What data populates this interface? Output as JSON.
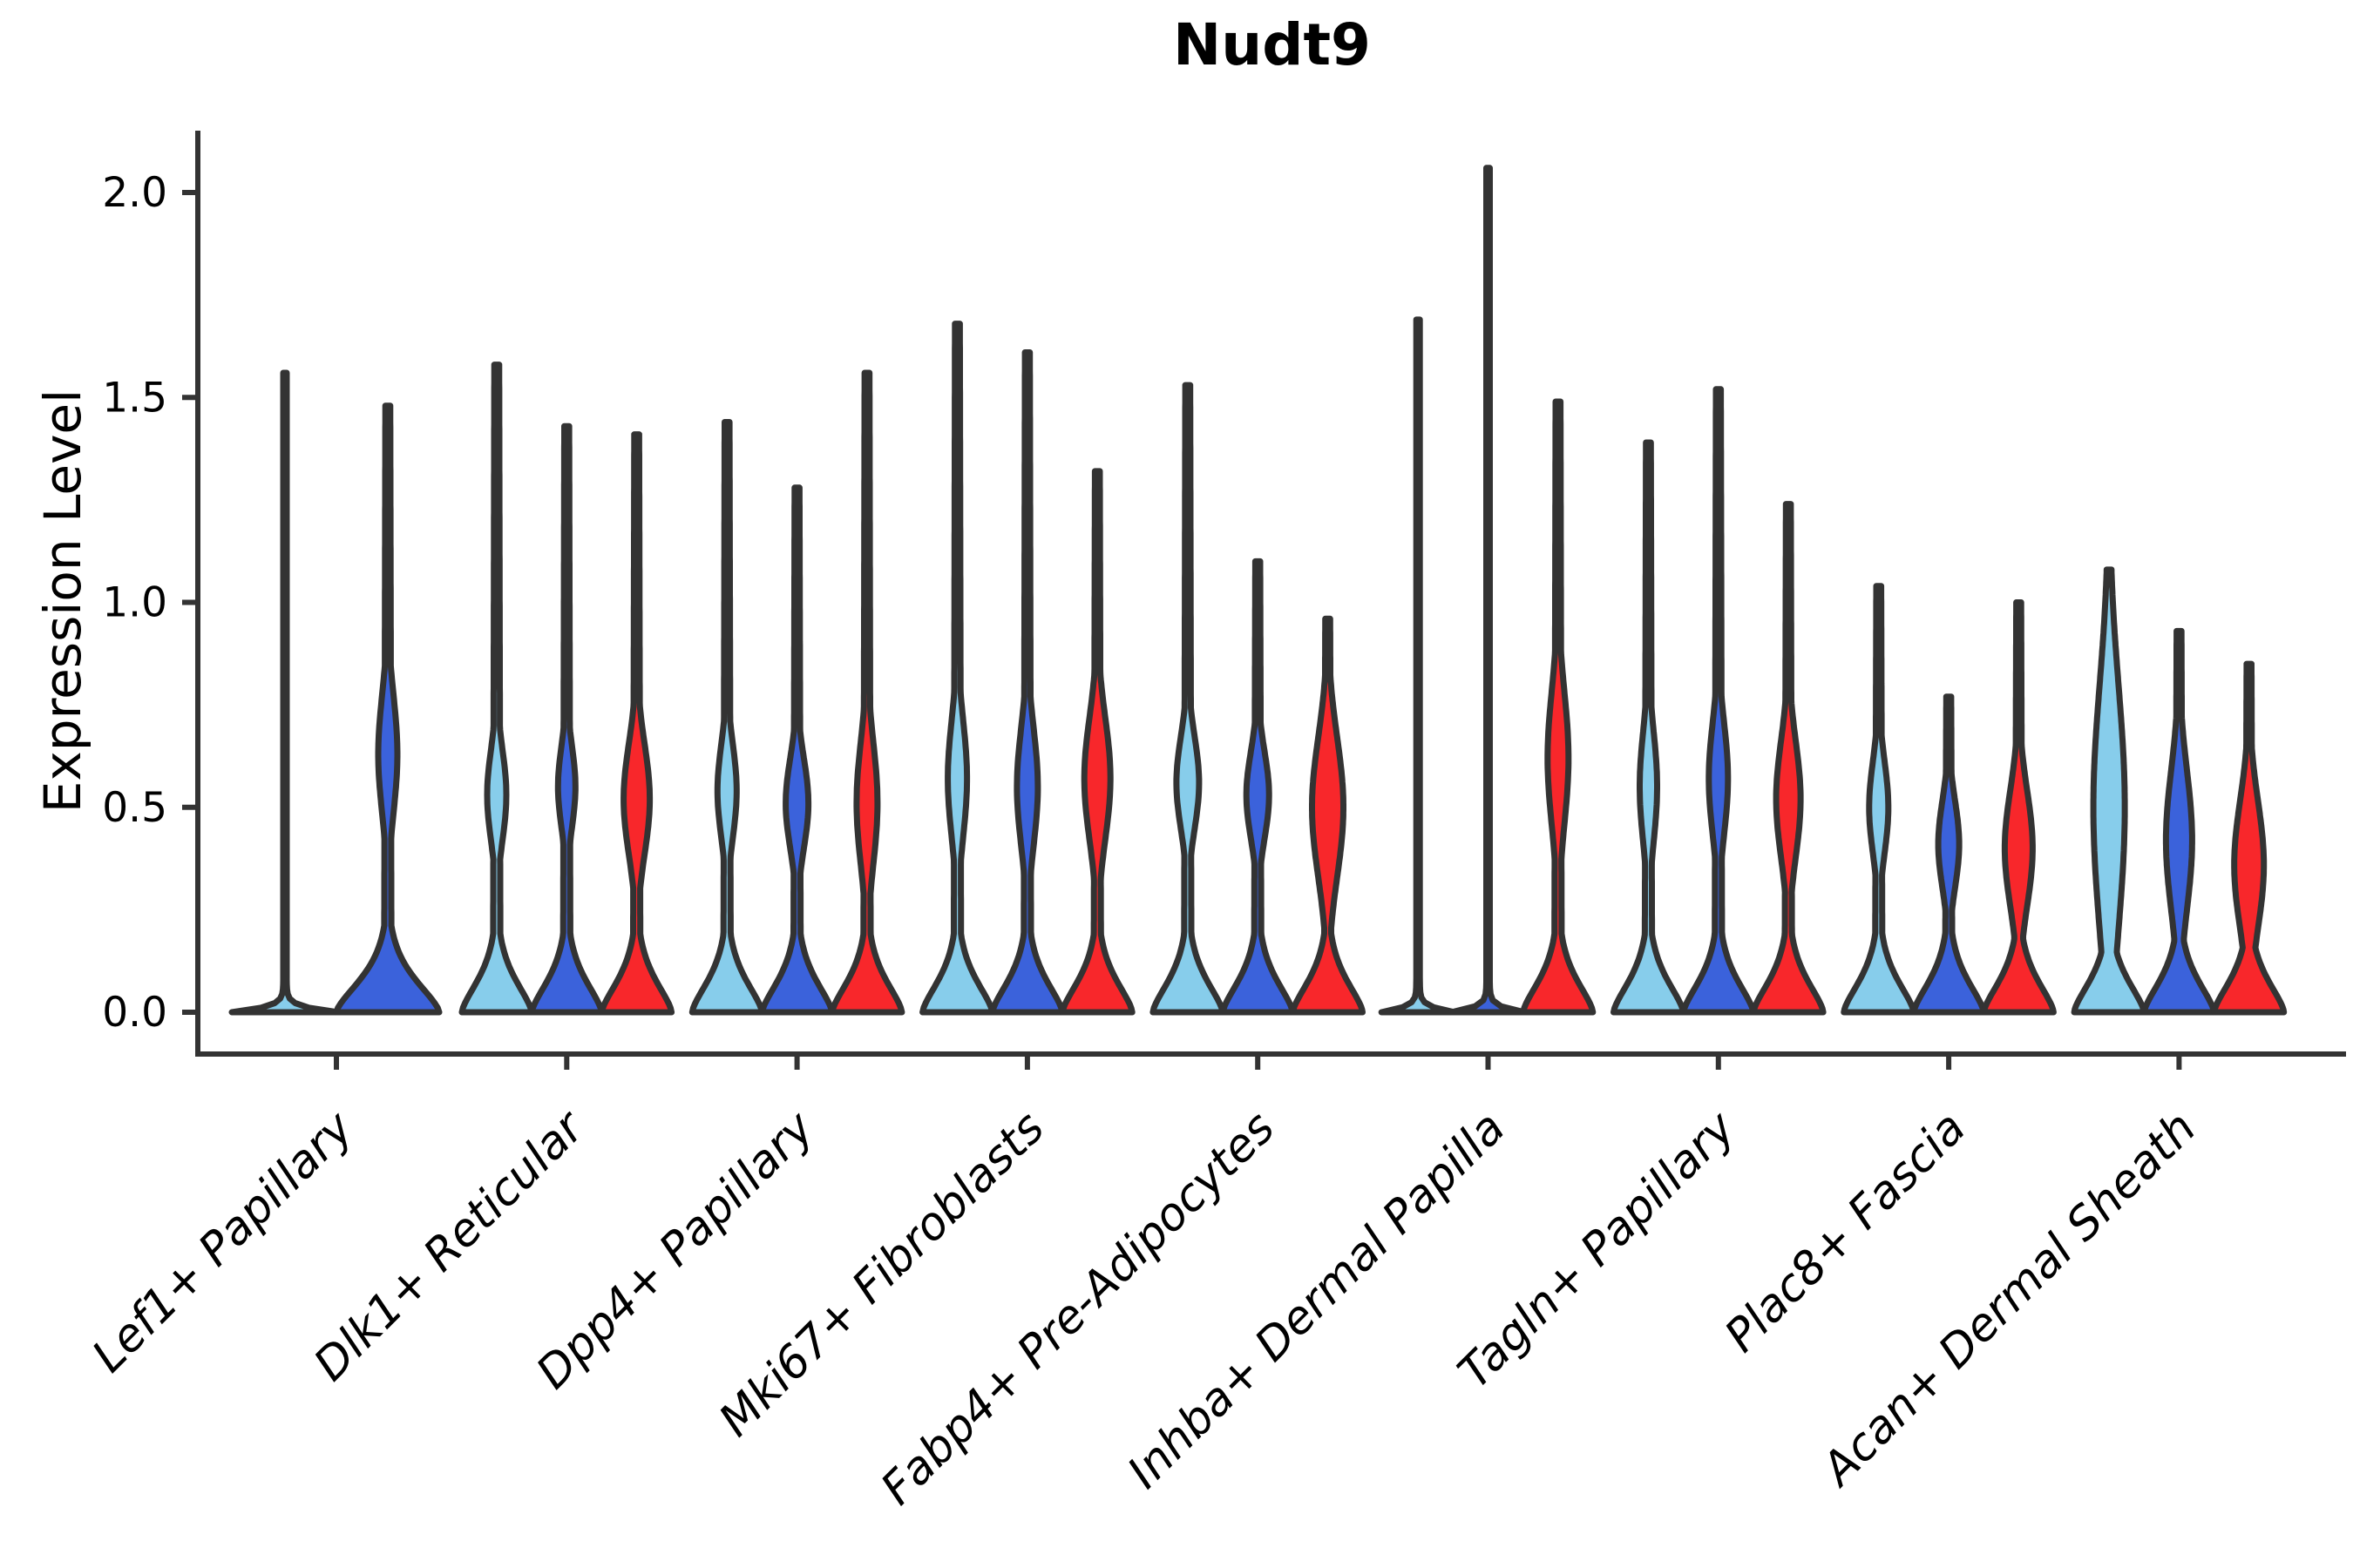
{
  "chart_data": {
    "type": "violin",
    "title": "Nudt9",
    "ylabel": "Expression Level",
    "xlabel": "",
    "ylim": [
      -0.1,
      2.15
    ],
    "grid": false,
    "legend": "none",
    "yticks": [
      {
        "value": 0.0,
        "label": "0.0"
      },
      {
        "value": 0.5,
        "label": "0.5"
      },
      {
        "value": 1.0,
        "label": "1.0"
      },
      {
        "value": 1.5,
        "label": "1.5"
      },
      {
        "value": 2.0,
        "label": "2.0"
      }
    ],
    "palette": {
      "light-blue": "#87CDEB",
      "blue": "#3B62DB",
      "red": "#F8272B",
      "outline": "#333333"
    },
    "categories": [
      "Lef1+ Papillary",
      "Dlk1+ Reticular",
      "Dpp4+ Papillary",
      "Mki67+ Fibroblasts",
      "Fabp4+ Pre-Adipocytes",
      "Inhba+ Dermal Papilla",
      "Tagln+ Papillary",
      "Plac8+ Fascia",
      "Acan+ Dermal Sheath"
    ],
    "groups": [
      {
        "category": "Lef1+ Papillary",
        "violins": [
          {
            "color": "light-blue",
            "shape": "spike",
            "peak": 1.56,
            "base_halfwidth": 59
          },
          {
            "color": "blue",
            "shape": "violin",
            "peak": 1.48,
            "base_halfwidth": 59,
            "bulge": {
              "center": 0.63,
              "sigma": 0.2,
              "halfwidth": 11
            }
          }
        ]
      },
      {
        "category": "Dlk1+ Reticular",
        "violins": [
          {
            "color": "light-blue",
            "shape": "violin",
            "peak": 1.58,
            "base_halfwidth": 40,
            "bulge": {
              "center": 0.53,
              "sigma": 0.155,
              "halfwidth": 11
            }
          },
          {
            "color": "blue",
            "shape": "violin",
            "peak": 1.43,
            "base_halfwidth": 40,
            "bulge": {
              "center": 0.55,
              "sigma": 0.14,
              "halfwidth": 10
            }
          },
          {
            "color": "red",
            "shape": "violin",
            "peak": 1.41,
            "base_halfwidth": 40,
            "bulge": {
              "center": 0.52,
              "sigma": 0.19,
              "halfwidth": 15
            }
          }
        ]
      },
      {
        "category": "Dpp4+ Papillary",
        "violins": [
          {
            "color": "light-blue",
            "shape": "violin",
            "peak": 1.44,
            "base_halfwidth": 40,
            "bulge": {
              "center": 0.54,
              "sigma": 0.16,
              "halfwidth": 11
            }
          },
          {
            "color": "blue",
            "shape": "violin",
            "peak": 1.28,
            "base_halfwidth": 40,
            "bulge": {
              "center": 0.51,
              "sigma": 0.155,
              "halfwidth": 13
            }
          },
          {
            "color": "red",
            "shape": "violin",
            "peak": 1.56,
            "base_halfwidth": 40,
            "bulge": {
              "center": 0.51,
              "sigma": 0.21,
              "halfwidth": 12
            }
          }
        ]
      },
      {
        "category": "Mki67+ Fibroblasts",
        "violins": [
          {
            "color": "light-blue",
            "shape": "violin",
            "peak": 1.68,
            "base_halfwidth": 40,
            "bulge": {
              "center": 0.57,
              "sigma": 0.2,
              "halfwidth": 11
            }
          },
          {
            "color": "blue",
            "shape": "violin",
            "peak": 1.61,
            "base_halfwidth": 40,
            "bulge": {
              "center": 0.55,
              "sigma": 0.2,
              "halfwidth": 12
            }
          },
          {
            "color": "red",
            "shape": "violin",
            "peak": 1.32,
            "base_halfwidth": 40,
            "bulge": {
              "center": 0.57,
              "sigma": 0.21,
              "halfwidth": 15
            }
          }
        ]
      },
      {
        "category": "Fabp4+ Pre-Adipocytes",
        "violins": [
          {
            "color": "light-blue",
            "shape": "violin",
            "peak": 1.53,
            "base_halfwidth": 40,
            "bulge": {
              "center": 0.56,
              "sigma": 0.16,
              "halfwidth": 13
            }
          },
          {
            "color": "blue",
            "shape": "violin",
            "peak": 1.1,
            "base_halfwidth": 40,
            "bulge": {
              "center": 0.53,
              "sigma": 0.15,
              "halfwidth": 13
            }
          },
          {
            "color": "red",
            "shape": "violin",
            "peak": 0.96,
            "base_halfwidth": 40,
            "bulge": {
              "center": 0.5,
              "sigma": 0.24,
              "halfwidth": 18
            }
          }
        ]
      },
      {
        "category": "Inhba+ Dermal Papilla",
        "violins": [
          {
            "color": "light-blue",
            "shape": "spike",
            "peak": 1.69,
            "base_halfwidth": 40
          },
          {
            "color": "blue",
            "shape": "spike",
            "peak": 2.06,
            "base_halfwidth": 40
          },
          {
            "color": "red",
            "shape": "violin",
            "peak": 1.49,
            "base_halfwidth": 40,
            "bulge": {
              "center": 0.62,
              "sigma": 0.23,
              "halfwidth": 12
            }
          }
        ]
      },
      {
        "category": "Tagln+ Papillary",
        "violins": [
          {
            "color": "light-blue",
            "shape": "violin",
            "peak": 1.39,
            "base_halfwidth": 40,
            "bulge": {
              "center": 0.55,
              "sigma": 0.19,
              "halfwidth": 10
            }
          },
          {
            "color": "blue",
            "shape": "violin",
            "peak": 1.52,
            "base_halfwidth": 40,
            "bulge": {
              "center": 0.57,
              "sigma": 0.19,
              "halfwidth": 11
            }
          },
          {
            "color": "red",
            "shape": "violin",
            "peak": 1.24,
            "base_halfwidth": 40,
            "bulge": {
              "center": 0.52,
              "sigma": 0.2,
              "halfwidth": 14
            }
          }
        ]
      },
      {
        "category": "Plac8+ Fascia",
        "violins": [
          {
            "color": "light-blue",
            "shape": "violin",
            "peak": 1.04,
            "base_halfwidth": 40,
            "bulge": {
              "center": 0.5,
              "sigma": 0.16,
              "halfwidth": 11
            }
          },
          {
            "color": "blue",
            "shape": "violin",
            "peak": 0.77,
            "base_halfwidth": 40,
            "bulge": {
              "center": 0.41,
              "sigma": 0.15,
              "halfwidth": 12
            }
          },
          {
            "color": "red",
            "shape": "violin",
            "peak": 1.0,
            "base_halfwidth": 40,
            "bulge": {
              "center": 0.4,
              "sigma": 0.2,
              "halfwidth": 16
            }
          }
        ]
      },
      {
        "category": "Acan+ Dermal Sheath",
        "violins": [
          {
            "color": "light-blue",
            "shape": "violin",
            "peak": 1.08,
            "base_halfwidth": 40,
            "bulge": {
              "center": 0.5,
              "sigma": 0.42,
              "halfwidth": 18
            }
          },
          {
            "color": "blue",
            "shape": "violin",
            "peak": 0.93,
            "base_halfwidth": 40,
            "bulge": {
              "center": 0.42,
              "sigma": 0.24,
              "halfwidth": 15
            }
          },
          {
            "color": "red",
            "shape": "violin",
            "peak": 0.85,
            "base_halfwidth": 40,
            "bulge": {
              "center": 0.36,
              "sigma": 0.22,
              "halfwidth": 17
            }
          }
        ]
      }
    ]
  }
}
